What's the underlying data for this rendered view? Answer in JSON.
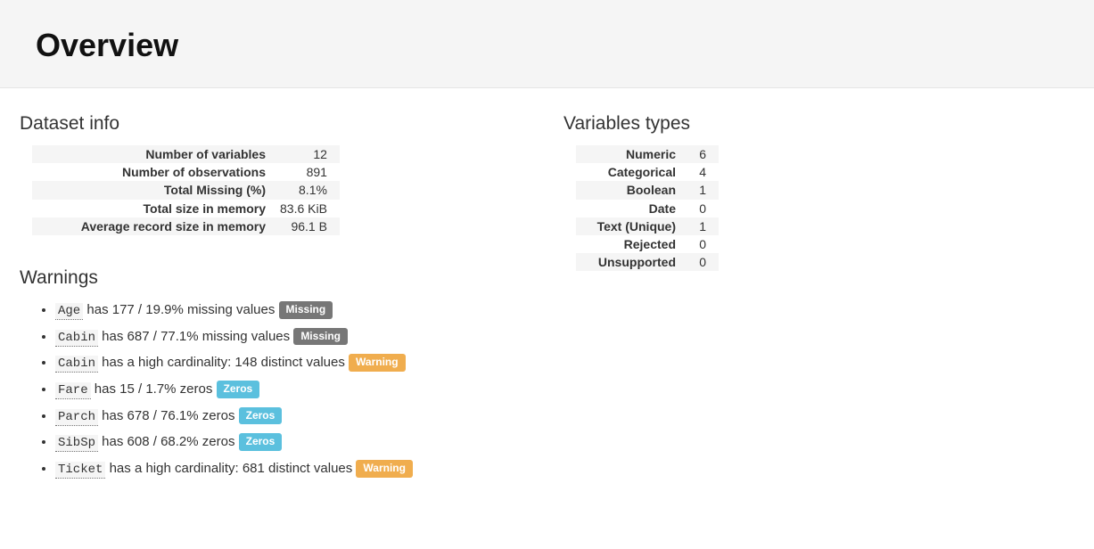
{
  "page": {
    "title": "Overview"
  },
  "sections": {
    "dataset_info_title": "Dataset info",
    "variable_types_title": "Variables types",
    "warnings_title": "Warnings"
  },
  "dataset_info": [
    {
      "label": "Number of variables",
      "value": "12"
    },
    {
      "label": "Number of observations",
      "value": "891"
    },
    {
      "label": "Total Missing (%)",
      "value": "8.1%"
    },
    {
      "label": "Total size in memory",
      "value": "83.6 KiB"
    },
    {
      "label": "Average record size in memory",
      "value": "96.1 B"
    }
  ],
  "variable_types": [
    {
      "label": "Numeric",
      "value": "6"
    },
    {
      "label": "Categorical",
      "value": "4"
    },
    {
      "label": "Boolean",
      "value": "1"
    },
    {
      "label": "Date",
      "value": "0"
    },
    {
      "label": "Text (Unique)",
      "value": "1"
    },
    {
      "label": "Rejected",
      "value": "0"
    },
    {
      "label": "Unsupported",
      "value": "0"
    }
  ],
  "warnings": [
    {
      "var": "Age",
      "text": " has 177 / 19.9% missing values ",
      "badge": "Missing",
      "badge_class": "badge-missing"
    },
    {
      "var": "Cabin",
      "text": " has 687 / 77.1% missing values ",
      "badge": "Missing",
      "badge_class": "badge-missing"
    },
    {
      "var": "Cabin",
      "text": " has a high cardinality: 148 distinct values ",
      "badge": "Warning",
      "badge_class": "badge-warning"
    },
    {
      "var": "Fare",
      "text": " has 15 / 1.7% zeros ",
      "badge": "Zeros",
      "badge_class": "badge-zeros"
    },
    {
      "var": "Parch",
      "text": " has 678 / 76.1% zeros ",
      "badge": "Zeros",
      "badge_class": "badge-zeros"
    },
    {
      "var": "SibSp",
      "text": " has 608 / 68.2% zeros ",
      "badge": "Zeros",
      "badge_class": "badge-zeros"
    },
    {
      "var": "Ticket",
      "text": " has a high cardinality: 681 distinct values ",
      "badge": "Warning",
      "badge_class": "badge-warning"
    }
  ]
}
